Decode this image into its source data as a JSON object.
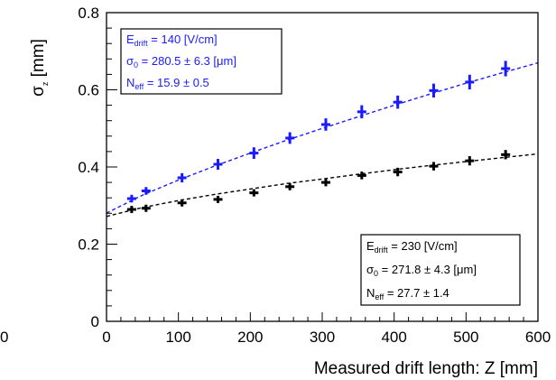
{
  "chart_data": {
    "type": "scatter",
    "title": "",
    "xlabel": "Measured drift length: Z [mm]",
    "ylabel": {
      "base": "σ",
      "sub": "z",
      "unit": " [mm]"
    },
    "xlim": [
      0,
      600
    ],
    "ylim": [
      0,
      0.8
    ],
    "xticks": [
      0,
      100,
      200,
      300,
      400,
      500,
      600
    ],
    "yticks": [
      0,
      0.2,
      0.4,
      0.6,
      0.8
    ],
    "xtick_labels": [
      "0",
      "100",
      "200",
      "300",
      "400",
      "500",
      "600"
    ],
    "ytick_labels": [
      "0",
      "0.2",
      "0.4",
      "0.6",
      "0.8"
    ],
    "stray_label": "0",
    "grid": false,
    "series": [
      {
        "color": "#1a1aff",
        "x": [
          35,
          55,
          105,
          155,
          205,
          255,
          305,
          355,
          405,
          455,
          505,
          555
        ],
        "y": [
          0.318,
          0.338,
          0.372,
          0.407,
          0.436,
          0.475,
          0.51,
          0.543,
          0.568,
          0.598,
          0.62,
          0.655
        ],
        "yerr": [
          0.01,
          0.01,
          0.012,
          0.014,
          0.015,
          0.015,
          0.016,
          0.017,
          0.017,
          0.018,
          0.019,
          0.02
        ],
        "fit_curve": [
          [
            0,
            0.2805
          ],
          [
            50,
            0.327
          ],
          [
            100,
            0.366
          ],
          [
            150,
            0.402
          ],
          [
            200,
            0.436
          ],
          [
            250,
            0.469
          ],
          [
            300,
            0.5
          ],
          [
            350,
            0.53
          ],
          [
            400,
            0.56
          ],
          [
            450,
            0.589
          ],
          [
            500,
            0.617
          ],
          [
            550,
            0.644
          ],
          [
            600,
            0.67
          ]
        ],
        "legend": {
          "placement": "top-left",
          "lines": [
            {
              "a": "E",
              "sub": "drift",
              "b": " = 140 [V/cm]"
            },
            {
              "a": "σ",
              "sub": "0",
              "b": "  = 280.5 ± 6.3 [μm]"
            },
            {
              "a": "N",
              "sub": "eff",
              "b": " = 15.9 ± 0.5"
            }
          ]
        }
      },
      {
        "color": "#000000",
        "x": [
          35,
          55,
          105,
          155,
          205,
          255,
          305,
          355,
          405,
          455,
          505,
          555
        ],
        "y": [
          0.29,
          0.293,
          0.307,
          0.316,
          0.333,
          0.349,
          0.36,
          0.378,
          0.387,
          0.402,
          0.416,
          0.432
        ],
        "yerr": [
          0.006,
          0.006,
          0.007,
          0.008,
          0.009,
          0.009,
          0.01,
          0.01,
          0.011,
          0.011,
          0.012,
          0.012
        ],
        "fit_curve": [
          [
            0,
            0.2718
          ],
          [
            50,
            0.295
          ],
          [
            100,
            0.313
          ],
          [
            150,
            0.329
          ],
          [
            200,
            0.343
          ],
          [
            250,
            0.357
          ],
          [
            300,
            0.369
          ],
          [
            350,
            0.381
          ],
          [
            400,
            0.393
          ],
          [
            450,
            0.404
          ],
          [
            500,
            0.414
          ],
          [
            550,
            0.424
          ],
          [
            600,
            0.434
          ]
        ],
        "legend": {
          "placement": "bottom-right",
          "lines": [
            {
              "a": "E",
              "sub": "drift",
              "b": " = 230 [V/cm]"
            },
            {
              "a": "σ",
              "sub": "0",
              "b": "  = 271.8 ± 4.3 [μm]"
            },
            {
              "a": "N",
              "sub": "eff",
              "b": " = 27.7 ± 1.4"
            }
          ]
        }
      }
    ]
  }
}
